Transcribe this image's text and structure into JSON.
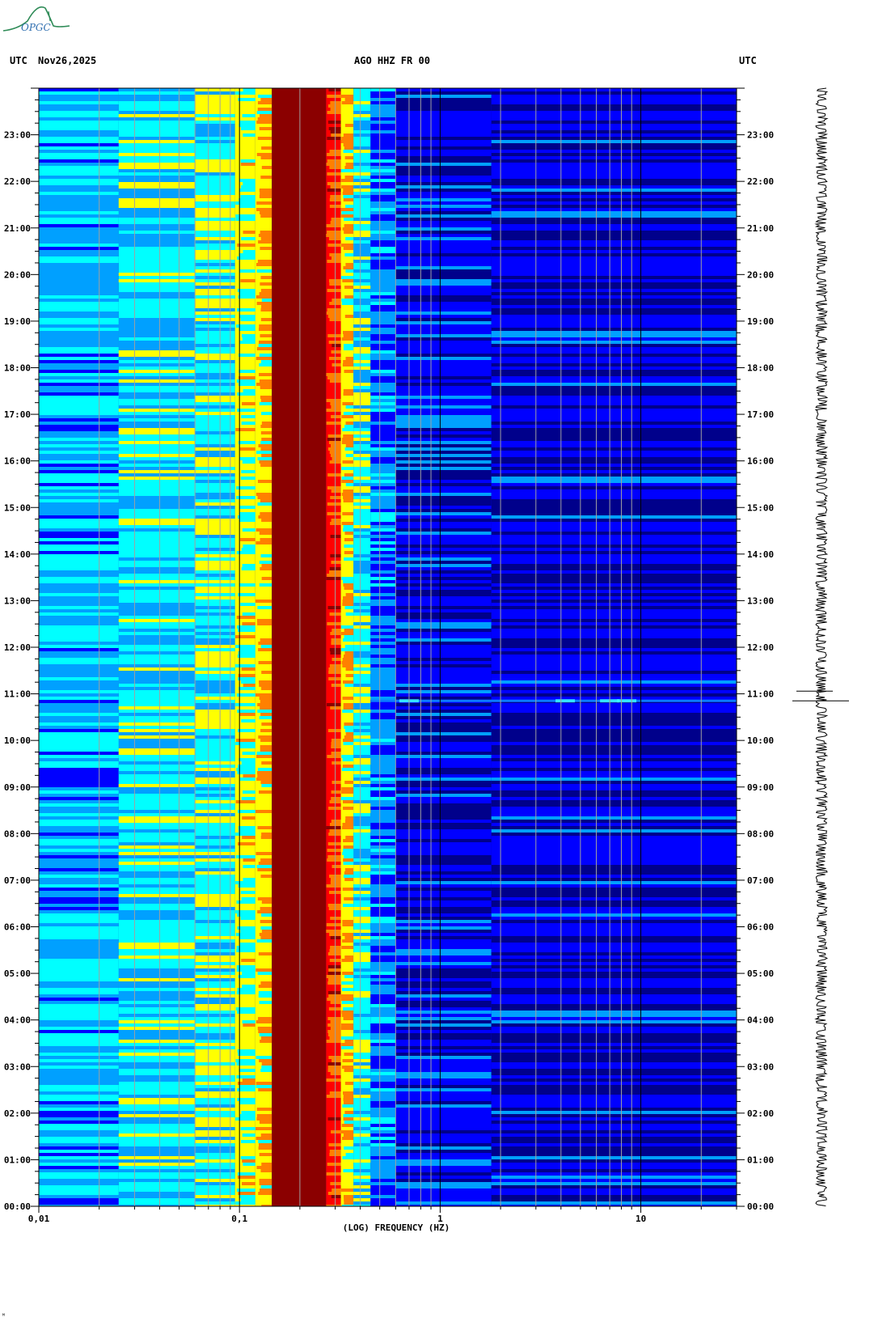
{
  "header": {
    "left_label": "UTC",
    "date": "Nov26,2025",
    "station": "AGO HHZ FR 00",
    "right_label": "UTC"
  },
  "logo": {
    "text": "OPGC",
    "color": "#2f6fb0"
  },
  "chart_data": {
    "type": "heatmap",
    "title": "AGO HHZ FR 00",
    "xlabel": "(LOG) FREQUENCY (HZ)",
    "ylabel": "",
    "x_scale": "log",
    "xlim": [
      0.01,
      30
    ],
    "x_ticks": [
      {
        "value": 0.01,
        "label": "0,01"
      },
      {
        "value": 0.1,
        "label": "0,1"
      },
      {
        "value": 1,
        "label": "1"
      },
      {
        "value": 10,
        "label": "10"
      }
    ],
    "ylim_hours": [
      0,
      24
    ],
    "y_ticks": [
      "00:00",
      "01:00",
      "02:00",
      "03:00",
      "04:00",
      "05:00",
      "06:00",
      "07:00",
      "08:00",
      "09:00",
      "10:00",
      "11:00",
      "12:00",
      "13:00",
      "14:00",
      "15:00",
      "16:00",
      "17:00",
      "18:00",
      "19:00",
      "20:00",
      "21:00",
      "22:00",
      "23:00"
    ],
    "colormap": [
      "#00008b",
      "#0000ff",
      "#00a0ff",
      "#00ffff",
      "#ffff00",
      "#ff8000",
      "#ff0000",
      "#8b0000"
    ],
    "bands": [
      {
        "from": 0.01,
        "to": 0.025,
        "level": 0.32
      },
      {
        "from": 0.025,
        "to": 0.06,
        "level": 0.4
      },
      {
        "from": 0.06,
        "to": 0.095,
        "level": 0.45
      },
      {
        "from": 0.095,
        "to": 0.12,
        "level": 0.52
      },
      {
        "from": 0.12,
        "to": 0.145,
        "level": 0.62
      },
      {
        "from": 0.145,
        "to": 0.27,
        "level": 1.0
      },
      {
        "from": 0.27,
        "to": 0.32,
        "level": 0.8
      },
      {
        "from": 0.32,
        "to": 0.37,
        "level": 0.6
      },
      {
        "from": 0.37,
        "to": 0.45,
        "level": 0.42
      },
      {
        "from": 0.45,
        "to": 0.6,
        "level": 0.25
      },
      {
        "from": 0.6,
        "to": 1.8,
        "level": 0.12
      },
      {
        "from": 1.8,
        "to": 30,
        "level": 0.08
      }
    ],
    "events": [
      {
        "time_hours": 10.85,
        "from_freq": 0.45,
        "to_freq": 30
      }
    ],
    "colors": {
      "plot_background": "#00008b",
      "grid": "#a0a0a0",
      "seismogram": "#000000"
    }
  }
}
